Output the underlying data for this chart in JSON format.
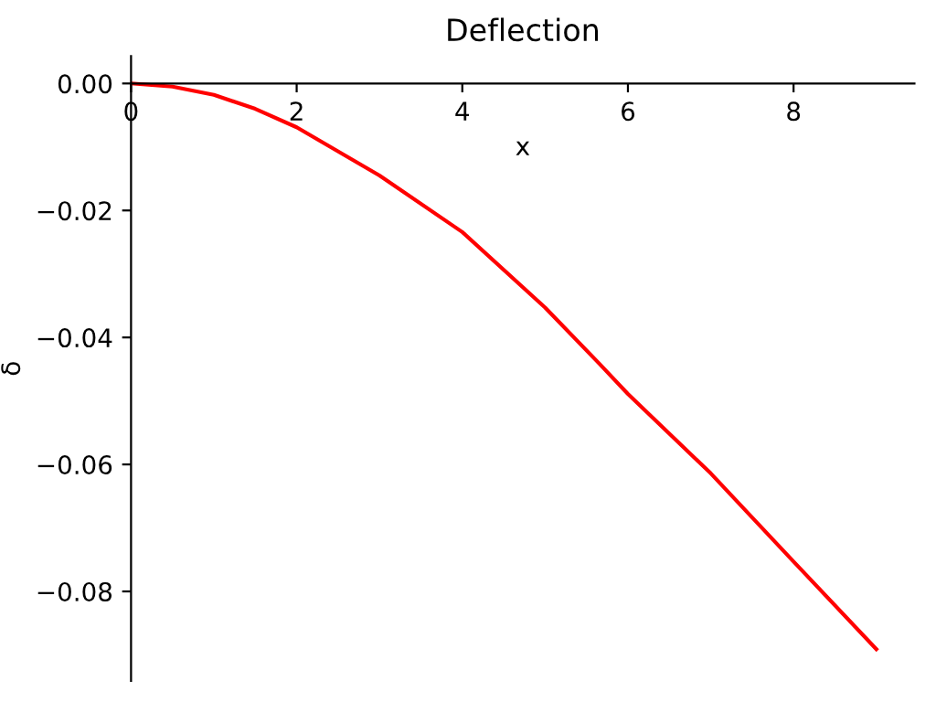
{
  "chart_data": {
    "type": "line",
    "title": "Deflection",
    "xlabel": "x",
    "ylabel": "δ",
    "x": [
      0,
      0.5,
      1,
      1.5,
      2,
      3,
      4,
      5,
      5.66,
      6,
      7,
      8,
      9
    ],
    "series": [
      {
        "color": "#ff0000",
        "values": [
          0,
          -0.0005,
          -0.0018,
          -0.004,
          -0.0069,
          -0.0145,
          -0.0234,
          -0.0353,
          -0.0442,
          -0.0489,
          -0.0614,
          -0.0753,
          -0.0891
        ]
      }
    ],
    "xlim": [
      0,
      9.46
    ],
    "ylim": [
      -0.0941,
      0.0043
    ],
    "xticks": [
      0,
      2,
      4,
      6,
      8
    ],
    "yticks": [
      {
        "value": 0,
        "label": "0.00"
      },
      {
        "value": -0.02,
        "label": "−0.02"
      },
      {
        "value": -0.04,
        "label": "−0.04"
      },
      {
        "value": -0.06,
        "label": "−0.06"
      },
      {
        "value": -0.08,
        "label": "−0.08"
      }
    ],
    "grid": false,
    "legend": false,
    "marker": "none",
    "line_style": "solid"
  }
}
